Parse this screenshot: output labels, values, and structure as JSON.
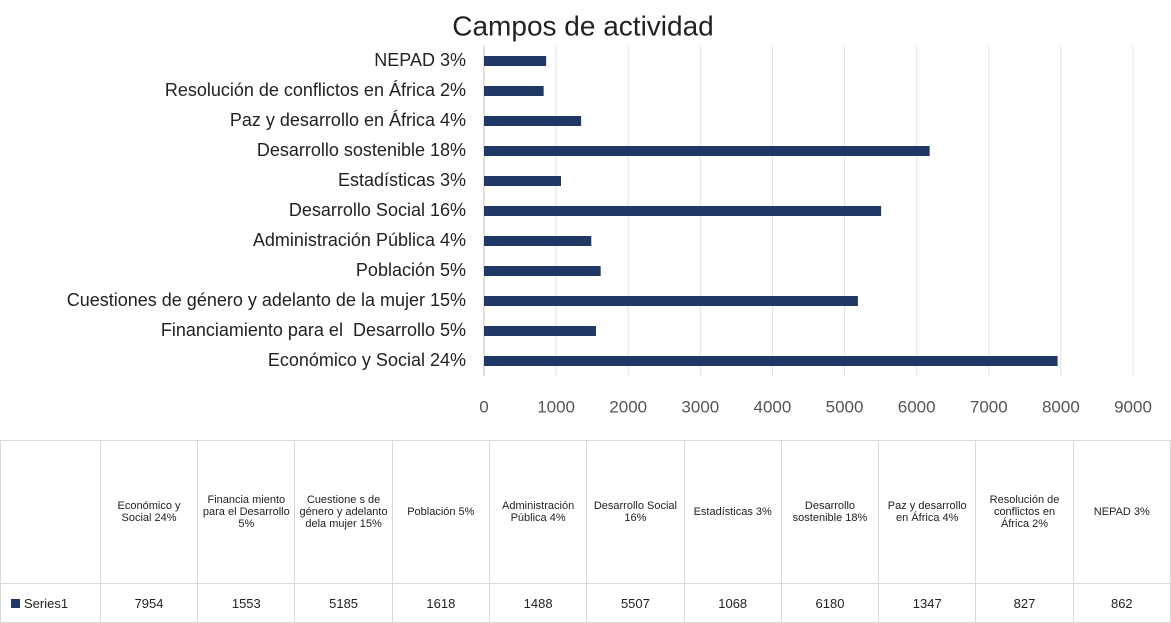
{
  "chart_data": {
    "type": "barh",
    "title": "Campos de actividad",
    "categories": [
      "Económico y Social 24%",
      "Financiamiento para el  Desarrollo 5%",
      "Cuestiones de género y adelanto de la mujer 15%",
      "Población 5%",
      "Administración Pública 4%",
      "Desarrollo Social 16%",
      "Estadísticas 3%",
      "Desarrollo sostenible 18%",
      "Paz y desarrollo en África 4%",
      "Resolución de conflictos en África 2%",
      "NEPAD 3%"
    ],
    "series": [
      {
        "name": "Series1",
        "color": "#1f3864",
        "values": [
          7954,
          1553,
          5185,
          1618,
          1488,
          5507,
          1068,
          6180,
          1347,
          827,
          862
        ]
      }
    ],
    "xlim": [
      0,
      9000
    ],
    "xticks": [
      0,
      1000,
      2000,
      3000,
      4000,
      5000,
      6000,
      7000,
      8000,
      9000
    ],
    "grid": true,
    "table_headers": [
      "Económico y Social 24%",
      "Financia miento para el Desarrollo 5%",
      "Cuestione s de género y adelanto dela mujer 15%",
      "Población 5%",
      "Administración Pública 4%",
      "Desarrollo Social 16%",
      "Estadísticas 3%",
      "Desarrollo sostenible 18%",
      "Paz y desarrollo en África 4%",
      "Resolución de conflictos en África 2%",
      "NEPAD 3%"
    ]
  }
}
